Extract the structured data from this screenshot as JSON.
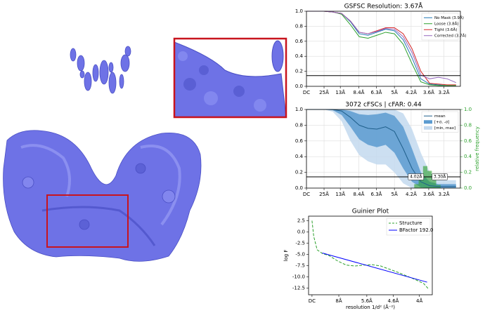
{
  "chart_data": [
    {
      "type": "line",
      "title": "GSFSC Resolution: 3.67Å",
      "x": [
        0,
        0.02,
        0.04,
        0.06,
        0.08,
        0.1,
        0.12,
        0.14,
        0.16,
        0.18,
        0.2,
        0.22,
        0.24,
        0.26,
        0.28,
        0.3,
        0.32,
        0.34
      ],
      "xlim": [
        0,
        0.35
      ],
      "xticks": [
        {
          "value": 0,
          "label": "DC"
        },
        {
          "value": 0.04,
          "label": "25Å"
        },
        {
          "value": 0.077,
          "label": "13Å"
        },
        {
          "value": 0.119,
          "label": "8.4Å"
        },
        {
          "value": 0.159,
          "label": "6.3Å"
        },
        {
          "value": 0.2,
          "label": "5Å"
        },
        {
          "value": 0.238,
          "label": "4.2Å"
        },
        {
          "value": 0.278,
          "label": "3.6Å"
        },
        {
          "value": 0.3125,
          "label": "3.2Å"
        }
      ],
      "ylim": [
        0,
        1
      ],
      "yticks": [
        {
          "value": 0,
          "label": "0.0"
        },
        0.2,
        0.4,
        0.6,
        0.8,
        {
          "value": 1,
          "label": "1.0"
        }
      ],
      "grid": true,
      "legend": "upper right",
      "threshold": 0.143,
      "series": [
        {
          "name": "No Mask (3.9Å)",
          "color": "#1f77b4",
          "values": [
            1,
            1,
            1,
            0.99,
            0.97,
            0.86,
            0.7,
            0.68,
            0.72,
            0.76,
            0.74,
            0.62,
            0.38,
            0.1,
            0.03,
            0.02,
            0.01,
            0.01
          ]
        },
        {
          "name": "Loose (3.8Å)",
          "color": "#2ca02c",
          "values": [
            1,
            1,
            1,
            0.99,
            0.96,
            0.82,
            0.66,
            0.64,
            0.68,
            0.72,
            0.7,
            0.56,
            0.3,
            0.06,
            0.02,
            0.01,
            0.01,
            0.01
          ]
        },
        {
          "name": "Tight (3.6Å)",
          "color": "#d62728",
          "values": [
            1,
            1,
            1,
            0.99,
            0.97,
            0.87,
            0.72,
            0.7,
            0.74,
            0.78,
            0.78,
            0.7,
            0.5,
            0.2,
            0.04,
            0.03,
            0.02,
            0.02
          ]
        },
        {
          "name": "Corrected (3.7Å)",
          "color": "#9467bd",
          "values": [
            1,
            1,
            1,
            0.99,
            0.97,
            0.87,
            0.72,
            0.7,
            0.73,
            0.77,
            0.76,
            0.66,
            0.45,
            0.15,
            0.1,
            0.12,
            0.1,
            0.05
          ]
        }
      ]
    },
    {
      "type": "line",
      "title": "3072 cFSCs | cFAR: 0.44",
      "x": [
        0,
        0.02,
        0.04,
        0.06,
        0.08,
        0.1,
        0.12,
        0.14,
        0.16,
        0.18,
        0.2,
        0.22,
        0.24,
        0.26,
        0.28,
        0.3,
        0.32,
        0.34
      ],
      "xlim": [
        0,
        0.35
      ],
      "xticks": [
        {
          "value": 0,
          "label": "DC"
        },
        {
          "value": 0.04,
          "label": "25Å"
        },
        {
          "value": 0.077,
          "label": "13Å"
        },
        {
          "value": 0.119,
          "label": "8.4Å"
        },
        {
          "value": 0.159,
          "label": "6.3Å"
        },
        {
          "value": 0.2,
          "label": "5Å"
        },
        {
          "value": 0.238,
          "label": "4.2Å"
        },
        {
          "value": 0.278,
          "label": "3.6Å"
        },
        {
          "value": 0.3125,
          "label": "3.2Å"
        }
      ],
      "ylim": [
        0,
        1
      ],
      "yticks": [
        {
          "value": 0,
          "label": "0.0"
        },
        0.2,
        0.4,
        0.6,
        0.8,
        {
          "value": 1,
          "label": "1.0"
        }
      ],
      "y2lim": [
        0,
        1
      ],
      "y2ticks": [
        {
          "value": 0,
          "label": "0.0"
        },
        0.2,
        0.4,
        0.6,
        0.8,
        {
          "value": 1,
          "label": "1.0"
        }
      ],
      "y2label": "relative frequency",
      "y2color": "#2ca02c",
      "grid": true,
      "legend": "upper right",
      "threshold": 0.143,
      "series": [
        {
          "name": "mean",
          "color": "#1f5f8b",
          "values": [
            1,
            1,
            1,
            1,
            0.98,
            0.9,
            0.8,
            0.76,
            0.75,
            0.78,
            0.72,
            0.5,
            0.25,
            0.08,
            0.03,
            0.02,
            0.02,
            0.02
          ]
        }
      ],
      "bands": [
        {
          "name": "[+σ, -σ]",
          "color": "#5b9bd0",
          "lower": [
            1,
            1,
            1,
            0.99,
            0.93,
            0.78,
            0.62,
            0.55,
            0.52,
            0.55,
            0.45,
            0.25,
            0.08,
            0.01,
            0,
            0,
            0,
            0
          ],
          "upper": [
            1,
            1,
            1,
            1,
            1,
            0.98,
            0.94,
            0.93,
            0.94,
            0.96,
            0.92,
            0.78,
            0.5,
            0.2,
            0.08,
            0.05,
            0.05,
            0.05
          ]
        },
        {
          "name": "[min, max]",
          "color": "#c3d9ee",
          "lower": [
            1,
            1,
            1,
            0.97,
            0.85,
            0.6,
            0.42,
            0.34,
            0.3,
            0.3,
            0.2,
            0.06,
            0,
            0,
            0,
            0,
            0,
            0
          ],
          "upper": [
            1,
            1,
            1,
            1,
            1,
            1,
            1,
            1,
            1,
            1,
            1,
            0.95,
            0.75,
            0.45,
            0.2,
            0.12,
            0.1,
            0.1
          ]
        }
      ],
      "histogram": {
        "color": "#2ca02c",
        "bins": [
          0.245,
          0.255,
          0.265,
          0.275,
          0.285,
          0.295,
          0.305
        ],
        "values": [
          0.05,
          0.12,
          0.28,
          0.22,
          0.1,
          0.04
        ]
      },
      "annotations": [
        {
          "text": "4.02Å",
          "x": 0.249
        },
        {
          "text": "3.30Å",
          "x": 0.303
        }
      ]
    },
    {
      "type": "line",
      "title": "Guinier Plot",
      "xlabel": "resolution 1/d² (Å⁻²)",
      "ylabel": "log F",
      "xlim": [
        -0.002,
        0.07
      ],
      "xticks": [
        {
          "value": 0,
          "label": "DC"
        },
        {
          "value": 0.0156,
          "label": "8Å"
        },
        {
          "value": 0.0319,
          "label": "5.6Å"
        },
        {
          "value": 0.0473,
          "label": "4.6Å"
        },
        {
          "value": 0.0625,
          "label": "4Å"
        }
      ],
      "ylim": [
        -14,
        3.5
      ],
      "yticks": [
        2.5,
        {
          "value": 0,
          "label": "0.0"
        },
        -2.5,
        {
          "value": -5,
          "label": "-5.0"
        },
        -7.5,
        {
          "value": -10,
          "label": "-10.0"
        },
        -12.5
      ],
      "grid": false,
      "legend": "upper right",
      "series": [
        {
          "name": "Structure",
          "color": "#2ca02c",
          "dash": true,
          "x": [
            0,
            0.001,
            0.003,
            0.006,
            0.01,
            0.015,
            0.02,
            0.025,
            0.03,
            0.035,
            0.04,
            0.045,
            0.05,
            0.055,
            0.06,
            0.065,
            0.068
          ],
          "values": [
            2.5,
            -1,
            -4,
            -4.8,
            -5.3,
            -6.5,
            -7.4,
            -7.6,
            -7.4,
            -7.3,
            -7.6,
            -8.3,
            -9,
            -9.8,
            -10.6,
            -11.5,
            -12.8
          ]
        },
        {
          "name": "BFactor 192.0",
          "color": "#0000ff",
          "x": [
            0.006,
            0.067
          ],
          "values": [
            -4.7,
            -11.2
          ]
        }
      ]
    }
  ]
}
